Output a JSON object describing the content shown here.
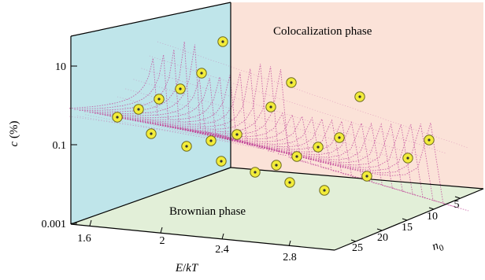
{
  "chart_data": {
    "type": "scatter",
    "z_axis": {
      "label_var": "c",
      "label_unit": " (%)",
      "scale": "log",
      "ticks": [
        "10",
        "0.1",
        "0.001"
      ]
    },
    "x_axis": {
      "label_var1": "E",
      "label_slash": "/",
      "label_var2": "kT",
      "ticks": [
        "1.6",
        "2",
        "2.4",
        "2.8"
      ]
    },
    "y_axis": {
      "label_var": "n",
      "label_sub": "0",
      "ticks": [
        "5",
        "10",
        "15",
        "20",
        "25"
      ]
    },
    "regions": {
      "colocalization": "Colocalization phase",
      "brownian": "Brownian phase"
    },
    "surface": "phase boundary surface (dotted magenta mesh)",
    "points": [
      {
        "n0": 5,
        "e_kt": 2.2,
        "c": 30
      },
      {
        "n0": 15,
        "e_kt": 2.5,
        "c": 1.0
      },
      {
        "n0": 25,
        "e_kt": 2.8,
        "c": 0.1
      },
      {
        "n0": 5,
        "e_kt": 2.5,
        "c": 2.0
      },
      {
        "n0": 10,
        "e_kt": 2.9,
        "c": 0.05
      },
      {
        "n0": 25,
        "e_kt": 2.4,
        "c": 0.012
      }
    ],
    "colors": {
      "left_wall": "#bfe5ea",
      "back_wall": "#fbe2d8",
      "floor": "#e2efd8",
      "mesh": "#c24a9a",
      "point_fill": "#f2ec3a",
      "point_stroke": "#6d6a20",
      "colocalization_label": "#2f3f9a",
      "brownian_label": "#f08a2a"
    }
  }
}
